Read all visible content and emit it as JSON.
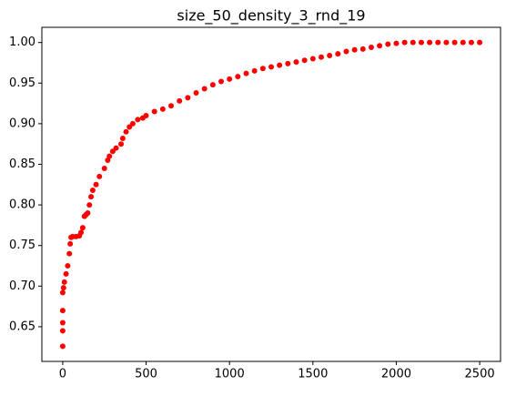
{
  "chart_data": {
    "type": "scatter",
    "title": "size_50_density_3_rnd_19",
    "color": "#ff0000",
    "x": [
      0,
      0,
      0,
      0,
      0,
      5,
      10,
      20,
      30,
      40,
      45,
      50,
      60,
      80,
      100,
      110,
      120,
      130,
      140,
      150,
      160,
      170,
      180,
      200,
      220,
      250,
      270,
      280,
      300,
      320,
      350,
      360,
      380,
      400,
      420,
      450,
      480,
      500,
      550,
      600,
      650,
      700,
      750,
      800,
      850,
      900,
      950,
      1000,
      1050,
      1100,
      1150,
      1200,
      1250,
      1300,
      1350,
      1400,
      1450,
      1500,
      1550,
      1600,
      1650,
      1700,
      1750,
      1800,
      1850,
      1900,
      1950,
      2000,
      2050,
      2100,
      2150,
      2200,
      2250,
      2300,
      2350,
      2400,
      2450,
      2500
    ],
    "y": [
      0.626,
      0.645,
      0.655,
      0.67,
      0.692,
      0.698,
      0.705,
      0.715,
      0.725,
      0.74,
      0.752,
      0.76,
      0.761,
      0.761,
      0.762,
      0.766,
      0.772,
      0.786,
      0.788,
      0.79,
      0.8,
      0.81,
      0.818,
      0.825,
      0.835,
      0.845,
      0.855,
      0.86,
      0.866,
      0.87,
      0.875,
      0.882,
      0.89,
      0.896,
      0.9,
      0.905,
      0.907,
      0.91,
      0.915,
      0.918,
      0.922,
      0.928,
      0.932,
      0.938,
      0.943,
      0.948,
      0.952,
      0.955,
      0.958,
      0.962,
      0.965,
      0.968,
      0.97,
      0.972,
      0.974,
      0.976,
      0.978,
      0.98,
      0.982,
      0.984,
      0.986,
      0.989,
      0.991,
      0.992,
      0.994,
      0.996,
      0.998,
      0.999,
      1.0,
      1.0,
      1.0,
      1.0,
      1.0,
      1.0,
      1.0,
      1.0,
      1.0,
      1.0
    ],
    "xlim": [
      -125,
      2625
    ],
    "ylim": [
      0.6073,
      1.0187
    ],
    "xticks": [
      0,
      500,
      1000,
      1500,
      2000,
      2500
    ],
    "yticks": [
      {
        "value": 0.65,
        "label": "0.65"
      },
      {
        "value": 0.7,
        "label": "0.70"
      },
      {
        "value": 0.75,
        "label": "0.75"
      },
      {
        "value": 0.8,
        "label": "0.80"
      },
      {
        "value": 0.85,
        "label": "0.85"
      },
      {
        "value": 0.9,
        "label": "0.90"
      },
      {
        "value": 0.95,
        "label": "0.95"
      },
      {
        "value": 1.0,
        "label": "1.00"
      }
    ]
  }
}
